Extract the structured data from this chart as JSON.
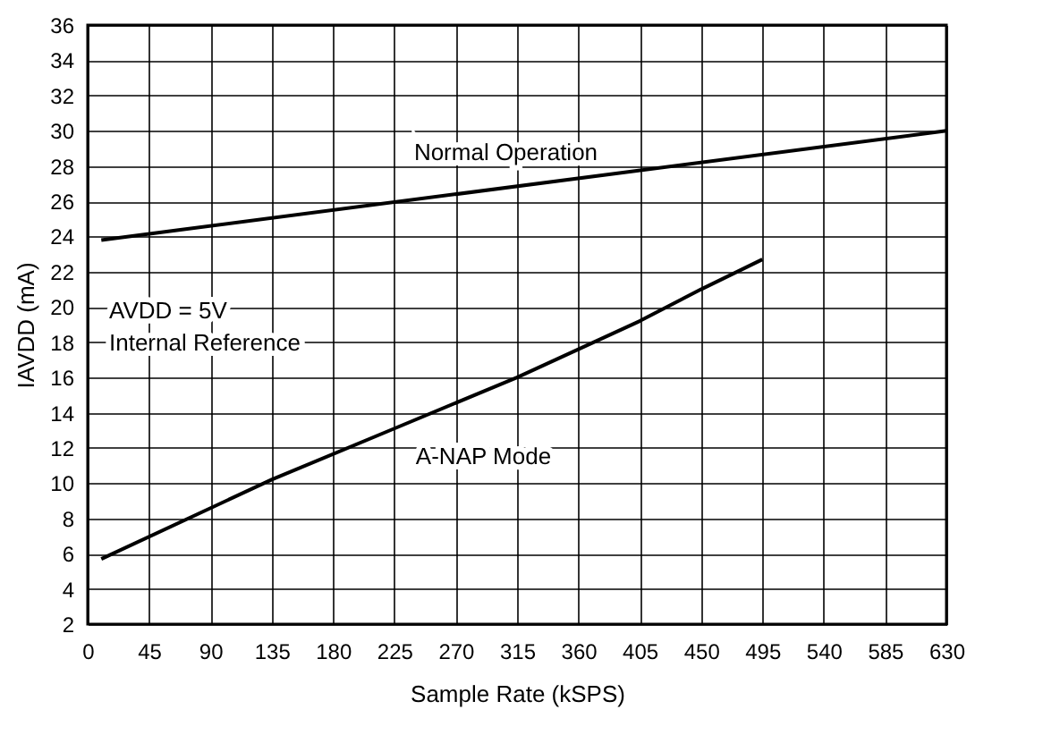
{
  "chart_data": {
    "type": "line",
    "xlabel": "Sample Rate (kSPS)",
    "ylabel": "IAVDD (mA)",
    "xlim": [
      0,
      630
    ],
    "xticks": [
      0,
      45,
      90,
      135,
      180,
      225,
      270,
      315,
      360,
      405,
      450,
      495,
      540,
      585,
      630
    ],
    "ylim": [
      2,
      36
    ],
    "yticks": [
      2,
      4,
      6,
      8,
      10,
      12,
      14,
      16,
      18,
      20,
      22,
      24,
      26,
      28,
      30,
      32,
      34,
      36
    ],
    "grid": true,
    "line_style": "solid",
    "annotations": [
      "AVDD = 5V",
      "Internal Reference"
    ],
    "series": [
      {
        "name": "Normal Operation",
        "color": "#000000",
        "x": [
          10,
          630
        ],
        "values": [
          23.8,
          30
        ]
      },
      {
        "name": "A-NAP Mode",
        "color": "#000000",
        "x": [
          10,
          135,
          225,
          315,
          405,
          450,
          495
        ],
        "values": [
          5.7,
          10.2,
          13.1,
          16.0,
          19.2,
          21.0,
          22.7
        ]
      }
    ]
  }
}
